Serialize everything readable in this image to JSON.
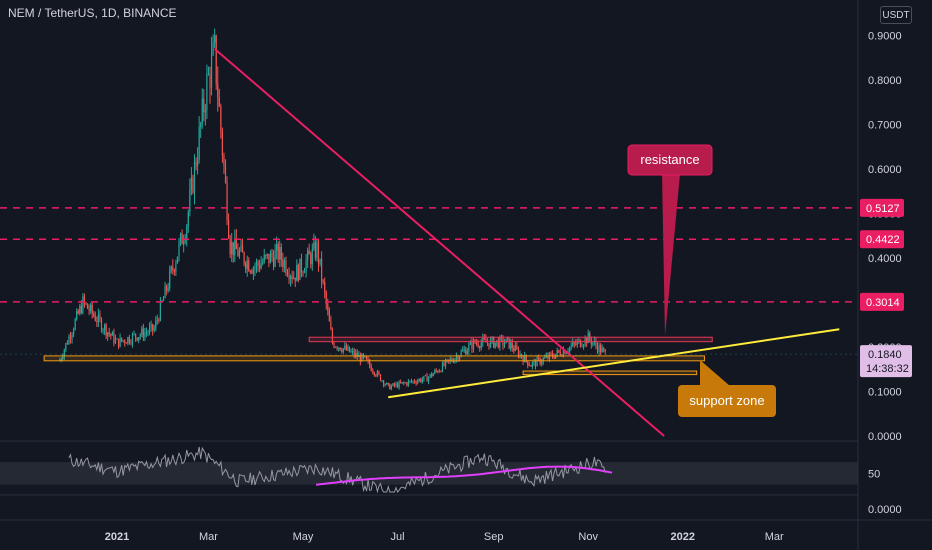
{
  "header": {
    "symbol_title": "NEM / TetherUS, 1D, BINANCE",
    "currency_button": "USDT"
  },
  "colors": {
    "background": "#131722",
    "grid": "#1e222d",
    "axis_text": "#d1d4dc",
    "candle_up": "#26a69a",
    "candle_down": "#ef5350",
    "trendline_down": "#e91e63",
    "trendline_up": "#ffeb3b",
    "dashed_resistance": "#e91e63",
    "resistance_box": "#e53955",
    "support_box": "#f39c12",
    "callout_resistance": "#b71c4d",
    "callout_support": "#c77a0a",
    "rsi_line": "#9598a1",
    "rsi_ma": "#e040fb",
    "price_badge": "#e1bee7"
  },
  "chart_data": [
    {
      "type": "candlestick",
      "title": "NEM / TetherUS, 1D, BINANCE",
      "x_tick_labels": [
        "2021",
        "Mar",
        "May",
        "Jul",
        "Sep",
        "Nov",
        "2022",
        "Mar"
      ],
      "y_tick_labels": [
        "0.9000",
        "0.8000",
        "0.7000",
        "0.6000",
        "0.5000",
        "0.4000",
        "0.3000",
        "0.2000",
        "0.1000",
        "0.0000"
      ],
      "ylim": [
        0.0,
        0.9
      ],
      "approx_close_path": [
        {
          "date": "2020-11-25",
          "close": 0.17
        },
        {
          "date": "2020-12-10",
          "close": 0.3
        },
        {
          "date": "2021-01-01",
          "close": 0.21
        },
        {
          "date": "2021-01-25",
          "close": 0.24
        },
        {
          "date": "2021-02-15",
          "close": 0.48
        },
        {
          "date": "2021-02-28",
          "close": 0.79
        },
        {
          "date": "2021-03-05",
          "close": 0.86
        },
        {
          "date": "2021-03-15",
          "close": 0.43
        },
        {
          "date": "2021-03-30",
          "close": 0.38
        },
        {
          "date": "2021-04-15",
          "close": 0.41
        },
        {
          "date": "2021-04-25",
          "close": 0.36
        },
        {
          "date": "2021-05-10",
          "close": 0.42
        },
        {
          "date": "2021-05-20",
          "close": 0.21
        },
        {
          "date": "2021-06-10",
          "close": 0.17
        },
        {
          "date": "2021-06-25",
          "close": 0.11
        },
        {
          "date": "2021-07-20",
          "close": 0.13
        },
        {
          "date": "2021-08-20",
          "close": 0.21
        },
        {
          "date": "2021-09-10",
          "close": 0.21
        },
        {
          "date": "2021-09-25",
          "close": 0.16
        },
        {
          "date": "2021-10-15",
          "close": 0.19
        },
        {
          "date": "2021-11-01",
          "close": 0.22
        },
        {
          "date": "2021-11-12",
          "close": 0.184
        }
      ],
      "last_price": "0.1840",
      "countdown": "14:38:32",
      "horizontal_levels": [
        {
          "value": 0.5127,
          "label": "0.5127",
          "style": "dashed"
        },
        {
          "value": 0.4422,
          "label": "0.4422",
          "style": "dashed"
        },
        {
          "value": 0.3014,
          "label": "0.3014",
          "style": "dashed"
        }
      ],
      "trendlines": [
        {
          "name": "down",
          "from": {
            "date": "2021-03-05",
            "value": 0.87
          },
          "to": {
            "date": "2021-12-20",
            "value": 0.0
          }
        },
        {
          "name": "up",
          "from": {
            "date": "2021-06-25",
            "value": 0.087
          },
          "to": {
            "date": "2022-04-12",
            "value": 0.24
          }
        }
      ],
      "zones": [
        {
          "kind": "resistance",
          "from": "2021-05-05",
          "to": "2022-01-20",
          "low": 0.212,
          "high": 0.222
        },
        {
          "kind": "support",
          "from": "2020-11-15",
          "to": "2022-01-15",
          "low": 0.169,
          "high": 0.18
        },
        {
          "kind": "support",
          "from": "2021-09-20",
          "to": "2022-01-10",
          "low": 0.138,
          "high": 0.146
        }
      ],
      "annotations": [
        {
          "text": "resistance"
        },
        {
          "text": "support zone"
        }
      ]
    },
    {
      "type": "line",
      "name": "RSI",
      "y_tick_labels": [
        "50"
      ],
      "approx_path": [
        {
          "date": "2020-12-01",
          "value": 62
        },
        {
          "date": "2021-01-01",
          "value": 52
        },
        {
          "date": "2021-02-25",
          "value": 68
        },
        {
          "date": "2021-03-20",
          "value": 43
        },
        {
          "date": "2021-05-10",
          "value": 55
        },
        {
          "date": "2021-06-25",
          "value": 33
        },
        {
          "date": "2021-08-25",
          "value": 65
        },
        {
          "date": "2021-09-25",
          "value": 43
        },
        {
          "date": "2021-11-05",
          "value": 60
        },
        {
          "date": "2021-11-12",
          "value": 52
        }
      ]
    },
    {
      "type": "line",
      "name": "lower-pane",
      "y_tick_labels": [
        "0.0000"
      ]
    }
  ]
}
